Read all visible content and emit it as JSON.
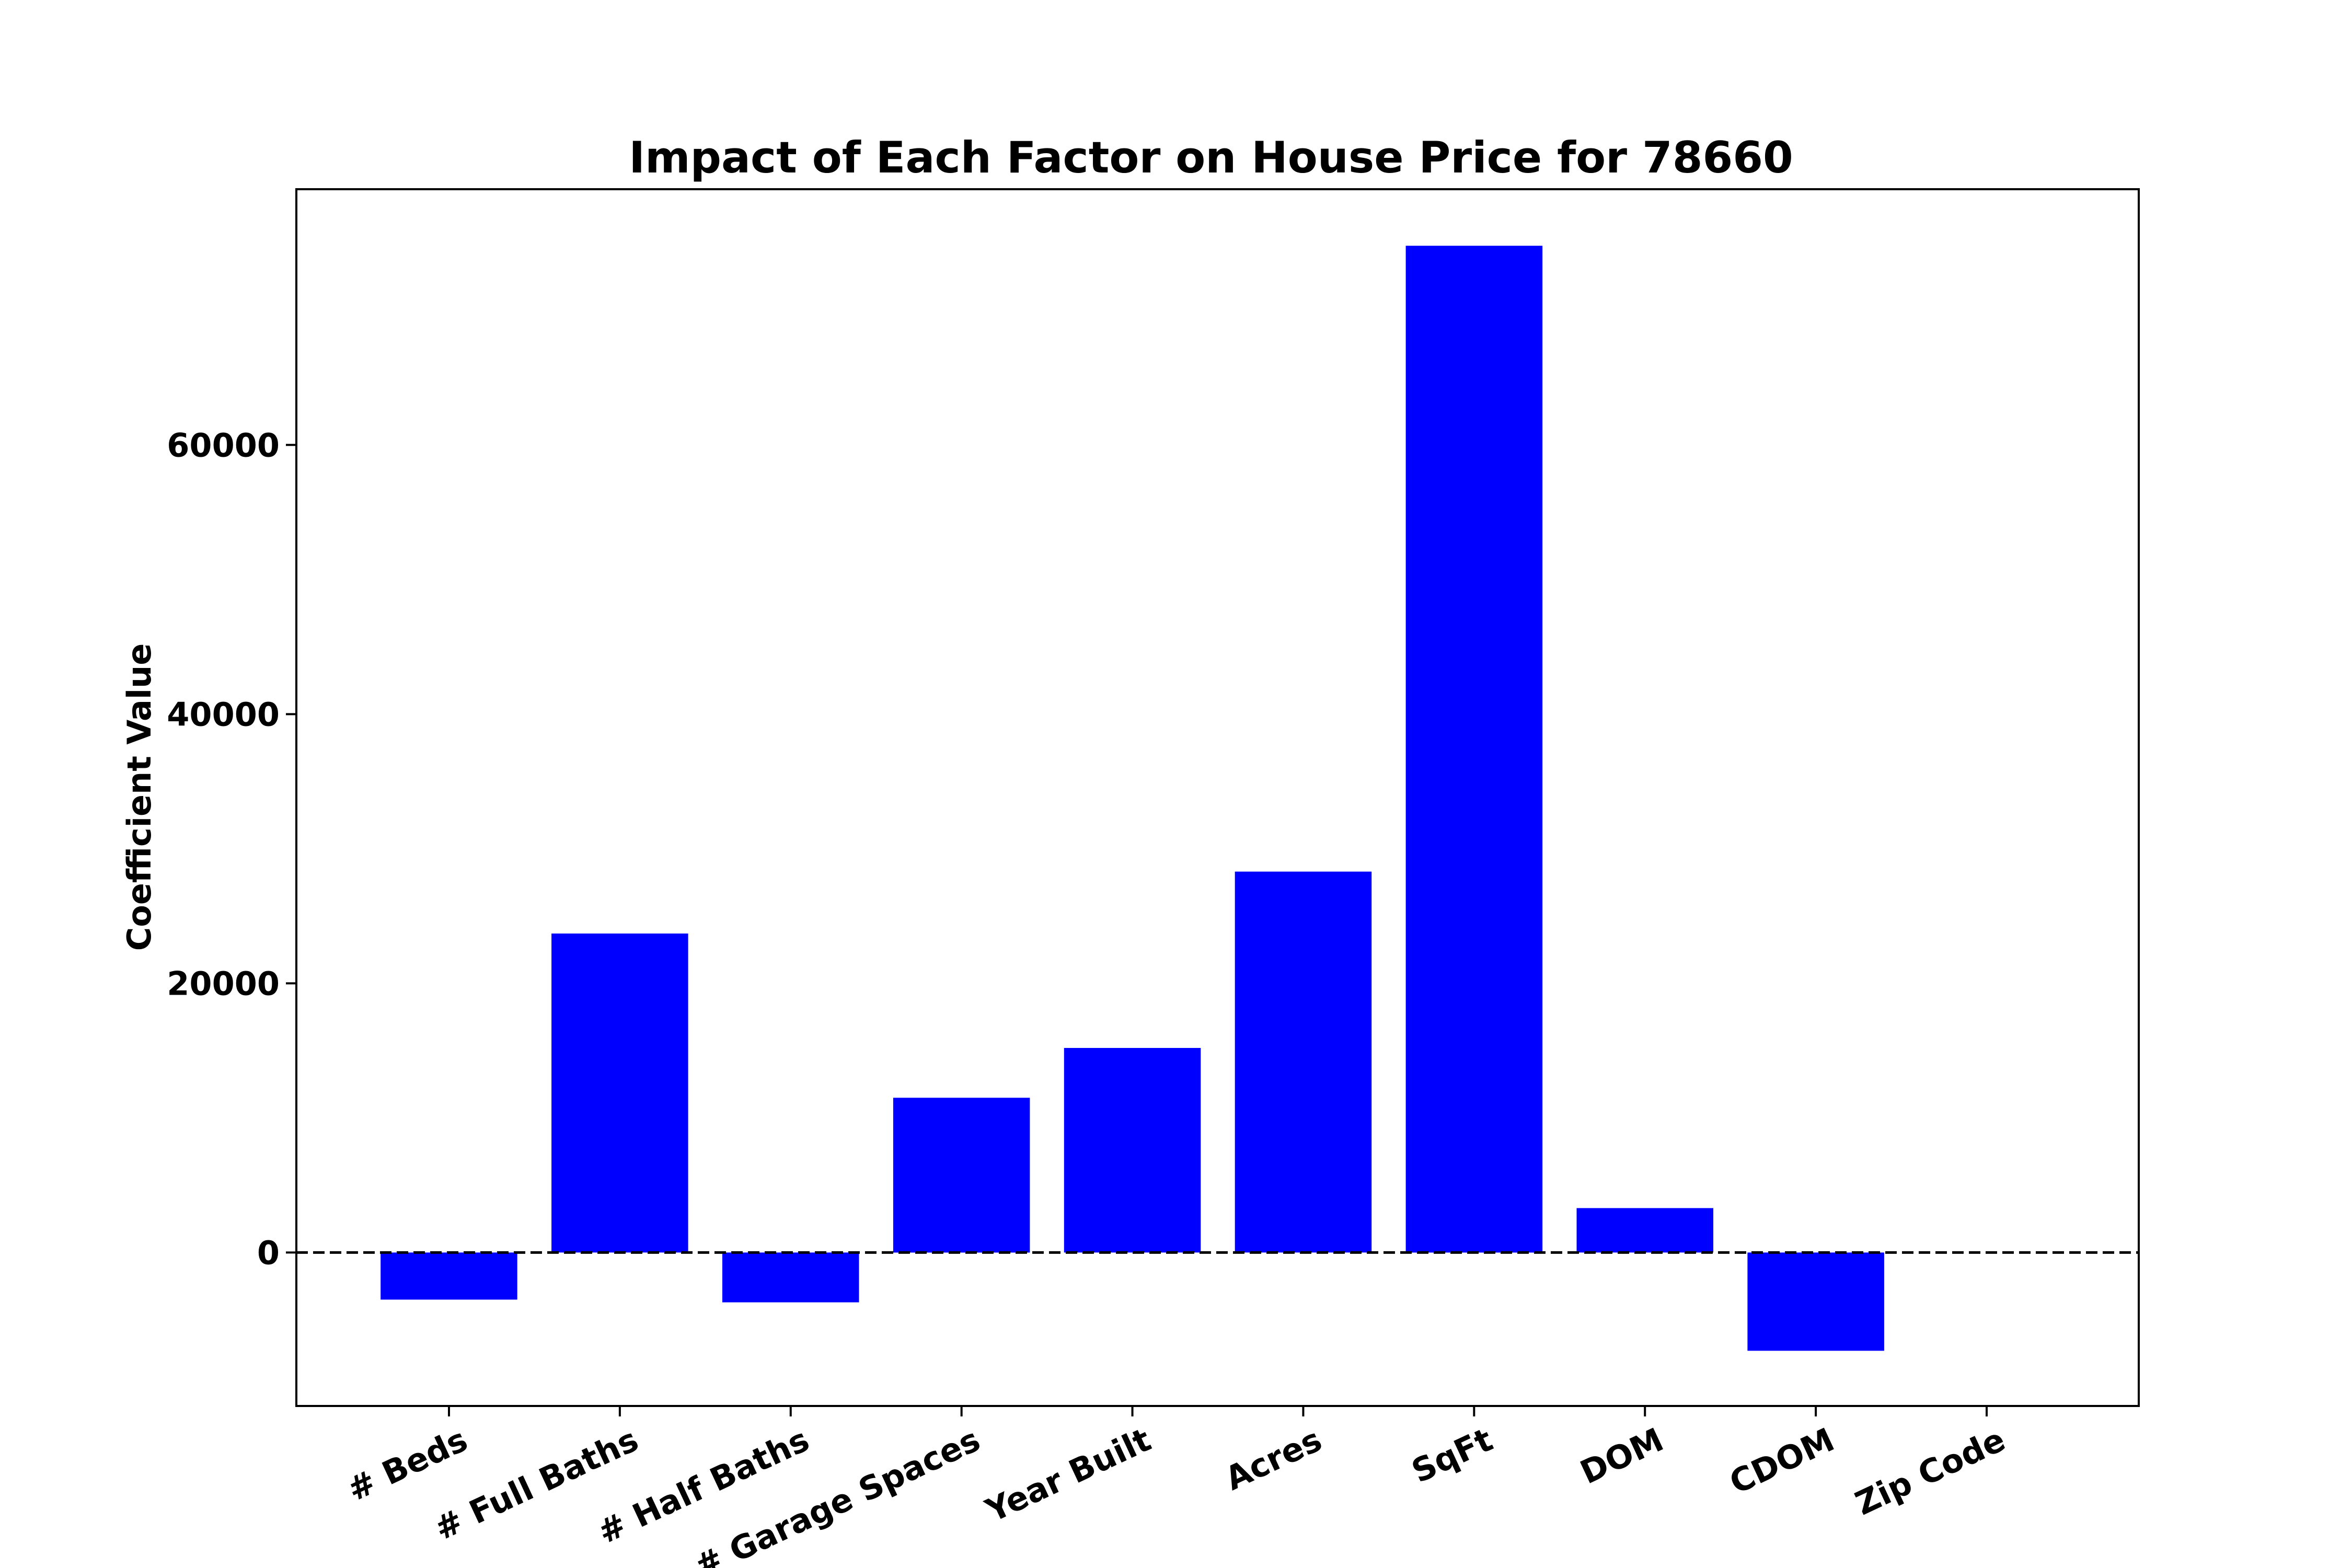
{
  "chart_data": {
    "type": "bar",
    "title": "Impact of Each Factor on House Price for 78660",
    "xlabel": "",
    "ylabel": "Coefficient Value",
    "categories": [
      "# Beds",
      "# Full Baths",
      "# Half Baths",
      "# Garage Spaces",
      "Year Built",
      "Acres",
      "SqFt",
      "DOM",
      "CDOM",
      "Zip Code"
    ],
    "values": [
      -3500,
      23700,
      -3700,
      11500,
      15200,
      28300,
      74800,
      3300,
      -7300,
      0
    ],
    "ylim": [
      -11400,
      79000
    ],
    "yticks": [
      0,
      20000,
      40000,
      60000
    ],
    "bar_color": "#0000ff",
    "zero_line": "dashed",
    "grid": false
  }
}
